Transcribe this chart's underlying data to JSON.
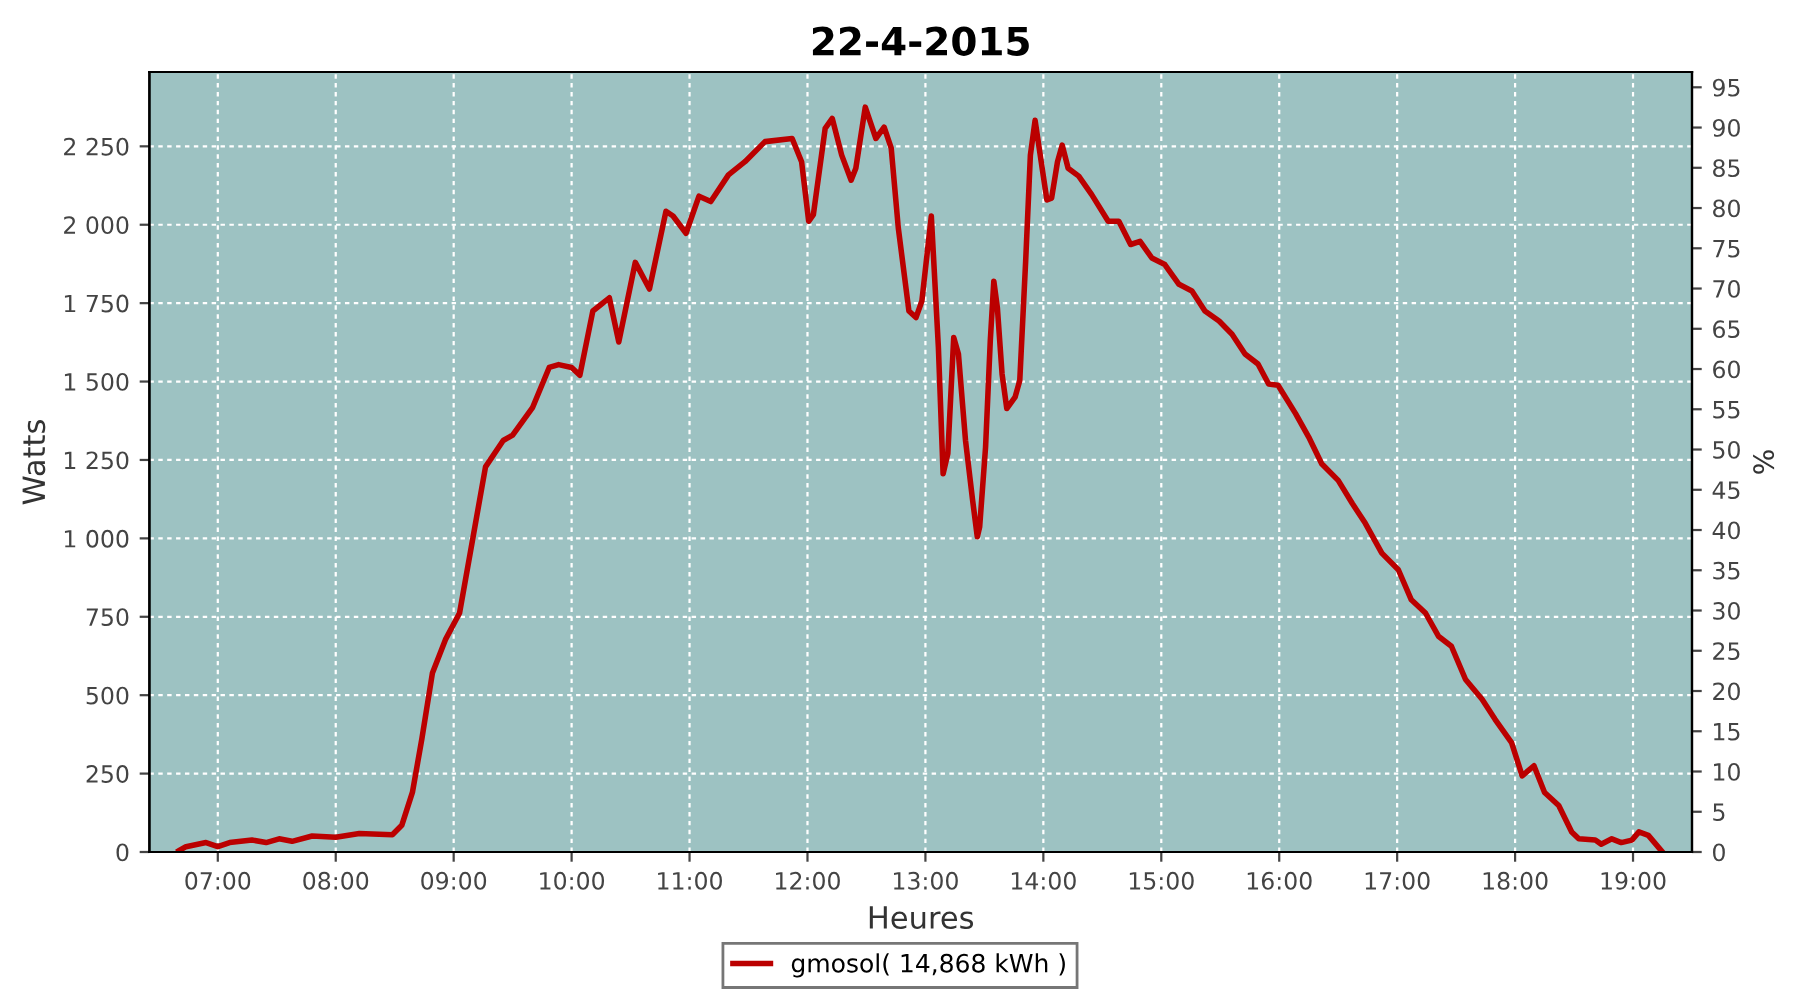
{
  "chart_data": {
    "type": "line",
    "title": "22-4-2015",
    "xlabel": "Heures",
    "ylabel": "Watts",
    "y2label": "%",
    "xlim": [
      6.42,
      19.5
    ],
    "xticks": [
      {
        "value": 7,
        "label": "07:00"
      },
      {
        "value": 8,
        "label": "08:00"
      },
      {
        "value": 9,
        "label": "09:00"
      },
      {
        "value": 10,
        "label": "10:00"
      },
      {
        "value": 11,
        "label": "11:00"
      },
      {
        "value": 12,
        "label": "12:00"
      },
      {
        "value": 13,
        "label": "13:00"
      },
      {
        "value": 14,
        "label": "14:00"
      },
      {
        "value": 15,
        "label": "15:00"
      },
      {
        "value": 16,
        "label": "16:00"
      },
      {
        "value": 17,
        "label": "17:00"
      },
      {
        "value": 18,
        "label": "18:00"
      },
      {
        "value": 19,
        "label": "19:00"
      }
    ],
    "ylim": [
      0,
      2487
    ],
    "yticks": [
      0,
      250,
      500,
      750,
      {
        "value": 1000,
        "label": "1 000"
      },
      {
        "value": 1250,
        "label": "1 250"
      },
      {
        "value": 1500,
        "label": "1 500"
      },
      {
        "value": 1750,
        "label": "1 750"
      },
      {
        "value": 2000,
        "label": "2 000"
      },
      {
        "value": 2250,
        "label": "2 250"
      }
    ],
    "y2lim": [
      0,
      96.9
    ],
    "y2ticks": [
      0,
      5,
      10,
      15,
      20,
      25,
      30,
      35,
      40,
      45,
      50,
      55,
      60,
      65,
      70,
      75,
      80,
      85,
      90,
      95
    ],
    "grid": true,
    "legend": "bottom",
    "line_style": "solid",
    "marker": "none",
    "series": [
      {
        "name": "gmosol( 14,868 kWh )",
        "color": "#bb0000",
        "x": [
          6.67,
          6.73,
          6.9,
          7.0,
          7.1,
          7.29,
          7.41,
          7.52,
          7.63,
          7.8,
          8.0,
          8.2,
          8.48,
          8.56,
          8.65,
          8.73,
          8.82,
          8.93,
          9.05,
          9.16,
          9.27,
          9.42,
          9.5,
          9.67,
          9.81,
          9.89,
          10.0,
          10.07,
          10.18,
          10.32,
          10.4,
          10.54,
          10.66,
          10.8,
          10.86,
          10.97,
          11.08,
          11.18,
          11.33,
          11.47,
          11.64,
          11.87,
          11.95,
          12.01,
          12.05,
          12.15,
          12.21,
          12.29,
          12.37,
          12.41,
          12.49,
          12.58,
          12.65,
          12.71,
          12.77,
          12.86,
          12.92,
          12.97,
          13.05,
          13.11,
          13.15,
          13.19,
          13.24,
          13.28,
          13.34,
          13.4,
          13.44,
          13.46,
          13.51,
          13.55,
          13.58,
          13.61,
          13.65,
          13.69,
          13.76,
          13.8,
          13.85,
          13.89,
          13.93,
          13.99,
          14.03,
          14.07,
          14.12,
          14.16,
          14.21,
          14.3,
          14.41,
          14.55,
          14.64,
          14.74,
          14.82,
          14.92,
          15.03,
          15.15,
          15.26,
          15.37,
          15.49,
          15.6,
          15.71,
          15.82,
          15.91,
          15.99,
          16.14,
          16.25,
          16.36,
          16.5,
          16.62,
          16.73,
          16.87,
          17.01,
          17.12,
          17.24,
          17.35,
          17.46,
          17.58,
          17.72,
          17.83,
          17.97,
          18.06,
          18.16,
          18.25,
          18.37,
          18.48,
          18.54,
          18.68,
          18.73,
          18.82,
          18.9,
          18.99,
          19.05,
          19.13,
          19.24
        ],
        "values": [
          4,
          17,
          30,
          17,
          30,
          38,
          30,
          42,
          34,
          51,
          47,
          59,
          55,
          85,
          190,
          360,
          571,
          677,
          762,
          995,
          1228,
          1312,
          1329,
          1418,
          1545,
          1554,
          1545,
          1520,
          1725,
          1767,
          1626,
          1880,
          1795,
          2043,
          2028,
          1973,
          2091,
          2074,
          2159,
          2201,
          2265,
          2275,
          2201,
          2011,
          2032,
          2307,
          2339,
          2222,
          2142,
          2180,
          2375,
          2275,
          2311,
          2244,
          1990,
          1725,
          1704,
          1757,
          2028,
          1609,
          1206,
          1270,
          1640,
          1588,
          1312,
          1122,
          1005,
          1037,
          1291,
          1630,
          1820,
          1736,
          1524,
          1414,
          1450,
          1503,
          1884,
          2222,
          2333,
          2180,
          2079,
          2085,
          2201,
          2254,
          2180,
          2155,
          2096,
          2011,
          2011,
          1937,
          1947,
          1894,
          1873,
          1810,
          1789,
          1725,
          1693,
          1651,
          1588,
          1556,
          1492,
          1488,
          1397,
          1323,
          1238,
          1185,
          1111,
          1048,
          953,
          900,
          804,
          762,
          688,
          656,
          550,
          487,
          423,
          349,
          243,
          275,
          190,
          148,
          64,
          42,
          38,
          25,
          42,
          30,
          38,
          64,
          53,
          4
        ]
      }
    ]
  }
}
